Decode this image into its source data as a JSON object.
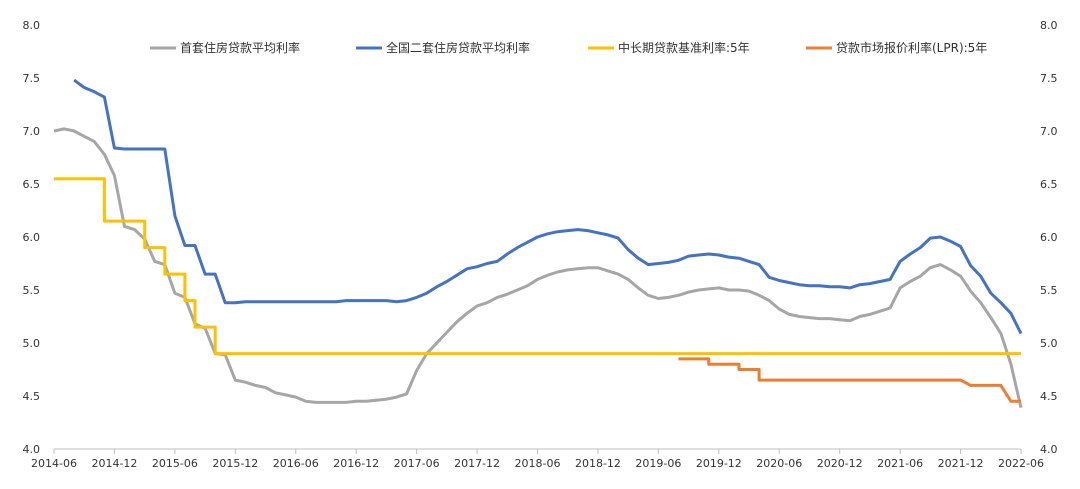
{
  "chart_data": {
    "type": "line",
    "title": "",
    "xlabel": "",
    "ylabel": "",
    "ylim": [
      4.0,
      8.0
    ],
    "yticks": [
      "4.0",
      "4.5",
      "5.0",
      "5.5",
      "6.0",
      "6.5",
      "7.0",
      "7.5",
      "8.0"
    ],
    "xticks": [
      "2014-06",
      "2014-12",
      "2015-06",
      "2015-12",
      "2016-06",
      "2016-12",
      "2017-06",
      "2017-12",
      "2018-06",
      "2018-12",
      "2019-06",
      "2019-12",
      "2020-06",
      "2020-12",
      "2021-06",
      "2021-12",
      "2022-06"
    ],
    "grid": false,
    "legend_position": "top",
    "dual_axis": true,
    "series": [
      {
        "name": "首套住房贷款平均利率",
        "color": "#a6a6a6",
        "points": [
          [
            "2014-06",
            7.0
          ],
          [
            "2014-07",
            7.02
          ],
          [
            "2014-08",
            7.0
          ],
          [
            "2014-09",
            6.95
          ],
          [
            "2014-10",
            6.9
          ],
          [
            "2014-11",
            6.78
          ],
          [
            "2014-12",
            6.58
          ],
          [
            "2015-01",
            6.1
          ],
          [
            "2015-02",
            6.07
          ],
          [
            "2015-03",
            5.98
          ],
          [
            "2015-04",
            5.77
          ],
          [
            "2015-05",
            5.74
          ],
          [
            "2015-06",
            5.47
          ],
          [
            "2015-07",
            5.43
          ],
          [
            "2015-08",
            5.18
          ],
          [
            "2015-09",
            5.14
          ],
          [
            "2015-10",
            4.9
          ],
          [
            "2015-11",
            4.89
          ],
          [
            "2015-12",
            4.65
          ],
          [
            "2016-01",
            4.63
          ],
          [
            "2016-02",
            4.6
          ],
          [
            "2016-03",
            4.58
          ],
          [
            "2016-04",
            4.53
          ],
          [
            "2016-05",
            4.51
          ],
          [
            "2016-06",
            4.49
          ],
          [
            "2016-07",
            4.45
          ],
          [
            "2016-08",
            4.44
          ],
          [
            "2016-09",
            4.44
          ],
          [
            "2016-10",
            4.44
          ],
          [
            "2016-11",
            4.44
          ],
          [
            "2016-12",
            4.45
          ],
          [
            "2017-01",
            4.45
          ],
          [
            "2017-02",
            4.46
          ],
          [
            "2017-03",
            4.47
          ],
          [
            "2017-04",
            4.49
          ],
          [
            "2017-05",
            4.52
          ],
          [
            "2017-06",
            4.74
          ],
          [
            "2017-07",
            4.9
          ],
          [
            "2017-08",
            5.0
          ],
          [
            "2017-09",
            5.1
          ],
          [
            "2017-10",
            5.2
          ],
          [
            "2017-11",
            5.28
          ],
          [
            "2017-12",
            5.35
          ],
          [
            "2018-01",
            5.38
          ],
          [
            "2018-02",
            5.43
          ],
          [
            "2018-03",
            5.46
          ],
          [
            "2018-04",
            5.5
          ],
          [
            "2018-05",
            5.54
          ],
          [
            "2018-06",
            5.6
          ],
          [
            "2018-07",
            5.64
          ],
          [
            "2018-08",
            5.67
          ],
          [
            "2018-09",
            5.69
          ],
          [
            "2018-10",
            5.7
          ],
          [
            "2018-11",
            5.71
          ],
          [
            "2018-12",
            5.71
          ],
          [
            "2019-01",
            5.68
          ],
          [
            "2019-02",
            5.65
          ],
          [
            "2019-03",
            5.6
          ],
          [
            "2019-04",
            5.52
          ],
          [
            "2019-05",
            5.45
          ],
          [
            "2019-06",
            5.42
          ],
          [
            "2019-07",
            5.43
          ],
          [
            "2019-08",
            5.45
          ],
          [
            "2019-09",
            5.48
          ],
          [
            "2019-10",
            5.5
          ],
          [
            "2019-11",
            5.51
          ],
          [
            "2019-12",
            5.52
          ],
          [
            "2020-01",
            5.5
          ],
          [
            "2020-02",
            5.5
          ],
          [
            "2020-03",
            5.49
          ],
          [
            "2020-04",
            5.45
          ],
          [
            "2020-05",
            5.4
          ],
          [
            "2020-06",
            5.32
          ],
          [
            "2020-07",
            5.27
          ],
          [
            "2020-08",
            5.25
          ],
          [
            "2020-09",
            5.24
          ],
          [
            "2020-10",
            5.23
          ],
          [
            "2020-11",
            5.23
          ],
          [
            "2020-12",
            5.22
          ],
          [
            "2021-01",
            5.21
          ],
          [
            "2021-02",
            5.25
          ],
          [
            "2021-03",
            5.27
          ],
          [
            "2021-04",
            5.3
          ],
          [
            "2021-05",
            5.33
          ],
          [
            "2021-06",
            5.52
          ],
          [
            "2021-07",
            5.58
          ],
          [
            "2021-08",
            5.63
          ],
          [
            "2021-09",
            5.71
          ],
          [
            "2021-10",
            5.74
          ],
          [
            "2021-11",
            5.69
          ],
          [
            "2021-12",
            5.63
          ],
          [
            "2022-01",
            5.49
          ],
          [
            "2022-02",
            5.38
          ],
          [
            "2022-03",
            5.24
          ],
          [
            "2022-04",
            5.09
          ],
          [
            "2022-05",
            4.8
          ],
          [
            "2022-06",
            4.39
          ]
        ]
      },
      {
        "name": "全国二套住房贷款平均利率",
        "color": "#4472c4",
        "points": [
          [
            "2014-08",
            7.48
          ],
          [
            "2014-09",
            7.41
          ],
          [
            "2014-10",
            7.37
          ],
          [
            "2014-11",
            7.32
          ],
          [
            "2014-12",
            6.84
          ],
          [
            "2015-01",
            6.83
          ],
          [
            "2015-02",
            6.83
          ],
          [
            "2015-03",
            6.83
          ],
          [
            "2015-04",
            6.83
          ],
          [
            "2015-05",
            6.83
          ],
          [
            "2015-06",
            6.2
          ],
          [
            "2015-07",
            5.92
          ],
          [
            "2015-08",
            5.92
          ],
          [
            "2015-09",
            5.65
          ],
          [
            "2015-10",
            5.65
          ],
          [
            "2015-11",
            5.38
          ],
          [
            "2015-12",
            5.38
          ],
          [
            "2016-01",
            5.39
          ],
          [
            "2016-02",
            5.39
          ],
          [
            "2016-03",
            5.39
          ],
          [
            "2016-04",
            5.39
          ],
          [
            "2016-05",
            5.39
          ],
          [
            "2016-06",
            5.39
          ],
          [
            "2016-07",
            5.39
          ],
          [
            "2016-08",
            5.39
          ],
          [
            "2016-09",
            5.39
          ],
          [
            "2016-10",
            5.39
          ],
          [
            "2016-11",
            5.4
          ],
          [
            "2016-12",
            5.4
          ],
          [
            "2017-01",
            5.4
          ],
          [
            "2017-02",
            5.4
          ],
          [
            "2017-03",
            5.4
          ],
          [
            "2017-04",
            5.39
          ],
          [
            "2017-05",
            5.4
          ],
          [
            "2017-06",
            5.43
          ],
          [
            "2017-07",
            5.47
          ],
          [
            "2017-08",
            5.53
          ],
          [
            "2017-09",
            5.58
          ],
          [
            "2017-10",
            5.64
          ],
          [
            "2017-11",
            5.7
          ],
          [
            "2017-12",
            5.72
          ],
          [
            "2018-01",
            5.75
          ],
          [
            "2018-02",
            5.77
          ],
          [
            "2018-03",
            5.84
          ],
          [
            "2018-04",
            5.9
          ],
          [
            "2018-05",
            5.95
          ],
          [
            "2018-06",
            6.0
          ],
          [
            "2018-07",
            6.03
          ],
          [
            "2018-08",
            6.05
          ],
          [
            "2018-09",
            6.06
          ],
          [
            "2018-10",
            6.07
          ],
          [
            "2018-11",
            6.06
          ],
          [
            "2018-12",
            6.04
          ],
          [
            "2019-01",
            6.02
          ],
          [
            "2019-02",
            5.99
          ],
          [
            "2019-03",
            5.88
          ],
          [
            "2019-04",
            5.8
          ],
          [
            "2019-05",
            5.74
          ],
          [
            "2019-06",
            5.75
          ],
          [
            "2019-07",
            5.76
          ],
          [
            "2019-08",
            5.78
          ],
          [
            "2019-09",
            5.82
          ],
          [
            "2019-10",
            5.83
          ],
          [
            "2019-11",
            5.84
          ],
          [
            "2019-12",
            5.83
          ],
          [
            "2020-01",
            5.81
          ],
          [
            "2020-02",
            5.8
          ],
          [
            "2020-03",
            5.77
          ],
          [
            "2020-04",
            5.74
          ],
          [
            "2020-05",
            5.62
          ],
          [
            "2020-06",
            5.59
          ],
          [
            "2020-07",
            5.57
          ],
          [
            "2020-08",
            5.55
          ],
          [
            "2020-09",
            5.54
          ],
          [
            "2020-10",
            5.54
          ],
          [
            "2020-11",
            5.53
          ],
          [
            "2020-12",
            5.53
          ],
          [
            "2021-01",
            5.52
          ],
          [
            "2021-02",
            5.55
          ],
          [
            "2021-03",
            5.56
          ],
          [
            "2021-04",
            5.58
          ],
          [
            "2021-05",
            5.6
          ],
          [
            "2021-06",
            5.77
          ],
          [
            "2021-07",
            5.84
          ],
          [
            "2021-08",
            5.9
          ],
          [
            "2021-09",
            5.99
          ],
          [
            "2021-10",
            6.0
          ],
          [
            "2021-11",
            5.96
          ],
          [
            "2021-12",
            5.91
          ],
          [
            "2022-01",
            5.73
          ],
          [
            "2022-02",
            5.63
          ],
          [
            "2022-03",
            5.47
          ],
          [
            "2022-04",
            5.38
          ],
          [
            "2022-05",
            5.28
          ],
          [
            "2022-06",
            5.09
          ]
        ]
      },
      {
        "name": "中长期贷款基准利率:5年",
        "color": "#ffc000",
        "points": [
          [
            "2014-06",
            6.55
          ],
          [
            "2014-11",
            6.55
          ],
          [
            "2014-11",
            6.15
          ],
          [
            "2015-03",
            6.15
          ],
          [
            "2015-03",
            5.9
          ],
          [
            "2015-05",
            5.9
          ],
          [
            "2015-05",
            5.65
          ],
          [
            "2015-07",
            5.65
          ],
          [
            "2015-07",
            5.4
          ],
          [
            "2015-08",
            5.4
          ],
          [
            "2015-08",
            5.15
          ],
          [
            "2015-10",
            5.15
          ],
          [
            "2015-10",
            4.9
          ],
          [
            "2022-06",
            4.9
          ]
        ]
      },
      {
        "name": "贷款市场报价利率(LPR):5年",
        "color": "#ed7d31",
        "points": [
          [
            "2019-08",
            4.85
          ],
          [
            "2019-11",
            4.85
          ],
          [
            "2019-11",
            4.8
          ],
          [
            "2020-02",
            4.8
          ],
          [
            "2020-02",
            4.75
          ],
          [
            "2020-04",
            4.75
          ],
          [
            "2020-04",
            4.65
          ],
          [
            "2021-12",
            4.65
          ],
          [
            "2022-01",
            4.6
          ],
          [
            "2022-04",
            4.6
          ],
          [
            "2022-05",
            4.45
          ],
          [
            "2022-06",
            4.45
          ]
        ]
      }
    ]
  }
}
